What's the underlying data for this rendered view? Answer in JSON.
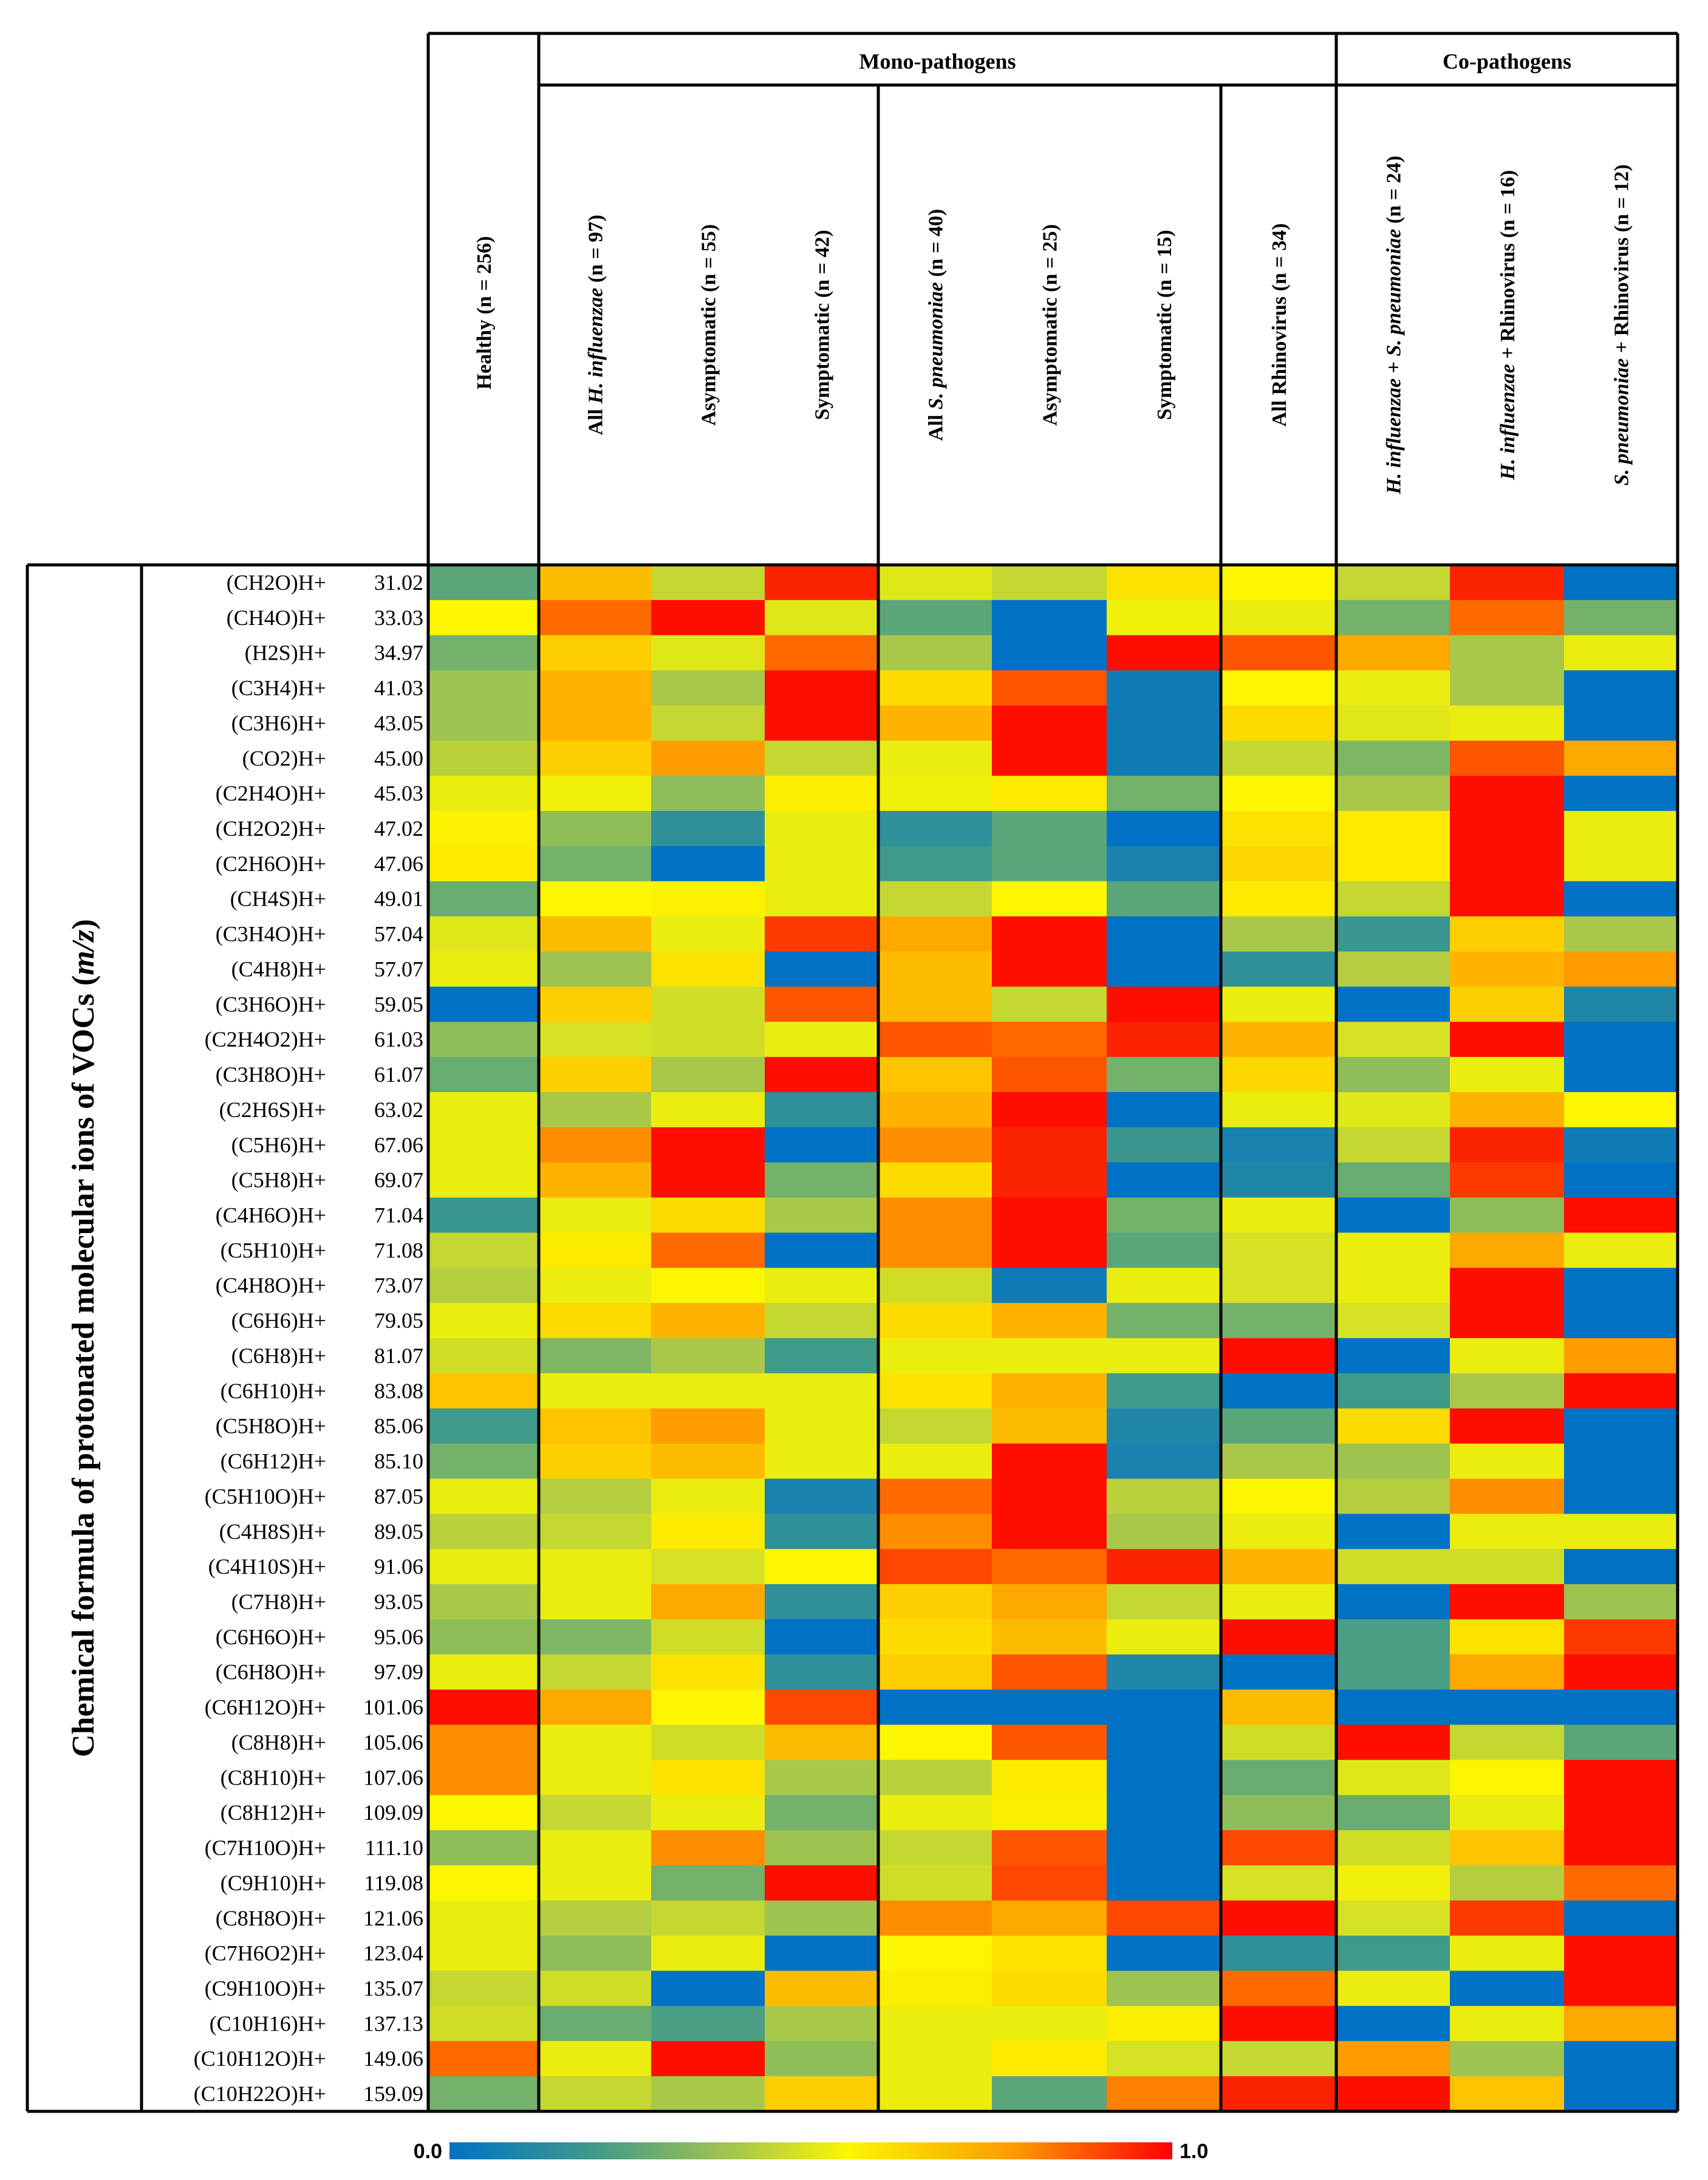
{
  "chart_data": {
    "type": "heatmap",
    "title": "",
    "ylabel_parts": [
      "Chemical formula of protonated molecular ions of VOCs (",
      "m/z",
      ")"
    ],
    "groups": [
      "Mono-pathogens",
      "Co-pathogens"
    ],
    "columns": [
      {
        "id": "healthy",
        "parts": [
          {
            "t": "Healthy (n = 256)",
            "i": false
          }
        ]
      },
      {
        "id": "all_hi",
        "parts": [
          {
            "t": "All ",
            "i": false
          },
          {
            "t": "H. influenzae",
            "i": true
          },
          {
            "t": " (n = 97)",
            "i": false
          }
        ]
      },
      {
        "id": "hi_asym",
        "parts": [
          {
            "t": "Asymptomatic (n = 55)",
            "i": false
          }
        ]
      },
      {
        "id": "hi_sym",
        "parts": [
          {
            "t": "Symptomatic (n = 42)",
            "i": false
          }
        ]
      },
      {
        "id": "all_sp",
        "parts": [
          {
            "t": "All ",
            "i": false
          },
          {
            "t": "S. pneumoniae",
            "i": true
          },
          {
            "t": " (n = 40)",
            "i": false
          }
        ]
      },
      {
        "id": "sp_asym",
        "parts": [
          {
            "t": "Asymptomatic (n = 25)",
            "i": false
          }
        ]
      },
      {
        "id": "sp_sym",
        "parts": [
          {
            "t": "Symptomatic (n = 15)",
            "i": false
          }
        ]
      },
      {
        "id": "all_rv",
        "parts": [
          {
            "t": "All Rhinovirus (n = 34)",
            "i": false
          }
        ]
      },
      {
        "id": "hi_sp",
        "parts": [
          {
            "t": "H. influenzae",
            "i": true
          },
          {
            "t": " + ",
            "i": false
          },
          {
            "t": "S. pneumoniae",
            "i": true
          },
          {
            "t": " (n = 24)",
            "i": false
          }
        ]
      },
      {
        "id": "hi_rv",
        "parts": [
          {
            "t": "H. influenzae",
            "i": true
          },
          {
            "t": " + Rhinovirus  (n = 16)",
            "i": false
          }
        ]
      },
      {
        "id": "sp_rv",
        "parts": [
          {
            "t": "S. pneumoniae",
            "i": true
          },
          {
            "t": " + Rhinovirus (n = 12)",
            "i": false
          }
        ]
      }
    ],
    "rows": [
      {
        "formula": "(CH2O)H+",
        "mz": "31.02"
      },
      {
        "formula": "(CH4O)H+",
        "mz": "33.03"
      },
      {
        "formula": "(H2S)H+",
        "mz": "34.97"
      },
      {
        "formula": "(C3H4)H+",
        "mz": "41.03"
      },
      {
        "formula": "(C3H6)H+",
        "mz": "43.05"
      },
      {
        "formula": "(CO2)H+",
        "mz": "45.00"
      },
      {
        "formula": "(C2H4O)H+",
        "mz": "45.03"
      },
      {
        "formula": "(CH2O2)H+",
        "mz": "47.02"
      },
      {
        "formula": "(C2H6O)H+",
        "mz": "47.06"
      },
      {
        "formula": "(CH4S)H+",
        "mz": "49.01"
      },
      {
        "formula": "(C3H4O)H+",
        "mz": "57.04"
      },
      {
        "formula": "(C4H8)H+",
        "mz": "57.07"
      },
      {
        "formula": "(C3H6O)H+",
        "mz": "59.05"
      },
      {
        "formula": "(C2H4O2)H+",
        "mz": "61.03"
      },
      {
        "formula": "(C3H8O)H+",
        "mz": "61.07"
      },
      {
        "formula": "(C2H6S)H+",
        "mz": "63.02"
      },
      {
        "formula": "(C5H6)H+",
        "mz": "67.06"
      },
      {
        "formula": "(C5H8)H+",
        "mz": "69.07"
      },
      {
        "formula": "(C4H6O)H+",
        "mz": "71.04"
      },
      {
        "formula": "(C5H10)H+",
        "mz": "71.08"
      },
      {
        "formula": "(C4H8O)H+",
        "mz": "73.07"
      },
      {
        "formula": "(C6H6)H+",
        "mz": "79.05"
      },
      {
        "formula": "(C6H8)H+",
        "mz": "81.07"
      },
      {
        "formula": "(C6H10)H+",
        "mz": "83.08"
      },
      {
        "formula": "(C5H8O)H+",
        "mz": "85.06"
      },
      {
        "formula": "(C6H12)H+",
        "mz": "85.10"
      },
      {
        "formula": "(C5H10O)H+",
        "mz": "87.05"
      },
      {
        "formula": "(C4H8S)H+",
        "mz": "89.05"
      },
      {
        "formula": "(C4H10S)H+",
        "mz": "91.06"
      },
      {
        "formula": "(C7H8)H+",
        "mz": "93.05"
      },
      {
        "formula": "(C6H6O)H+",
        "mz": "95.06"
      },
      {
        "formula": "(C6H8O)H+",
        "mz": "97.09"
      },
      {
        "formula": "(C6H12O)H+",
        "mz": "101.06"
      },
      {
        "formula": "(C8H8)H+",
        "mz": "105.06"
      },
      {
        "formula": "(C8H10)H+",
        "mz": "107.06"
      },
      {
        "formula": "(C8H12)H+",
        "mz": "109.09"
      },
      {
        "formula": "(C7H10O)H+",
        "mz": "111.10"
      },
      {
        "formula": "(C9H10)H+",
        "mz": "119.08"
      },
      {
        "formula": "(C8H8O)H+",
        "mz": "121.06"
      },
      {
        "formula": "(C7H6O2)H+",
        "mz": "123.04"
      },
      {
        "formula": "(C9H10O)H+",
        "mz": "135.07"
      },
      {
        "formula": "(C10H16)H+",
        "mz": "137.13"
      },
      {
        "formula": "(C10H12O)H+",
        "mz": "149.06"
      },
      {
        "formula": "(C10H22O)H+",
        "mz": "159.09"
      }
    ],
    "values": [
      [
        0.25,
        0.7,
        0.45,
        0.95,
        0.5,
        0.45,
        0.6,
        0.55,
        0.45,
        0.95,
        0.0
      ],
      [
        0.55,
        0.85,
        0.98,
        0.5,
        0.25,
        0.0,
        0.53,
        0.52,
        0.3,
        0.85,
        0.3
      ],
      [
        0.3,
        0.65,
        0.5,
        0.85,
        0.4,
        0.0,
        0.98,
        0.88,
        0.75,
        0.4,
        0.52
      ],
      [
        0.38,
        0.72,
        0.4,
        0.98,
        0.62,
        0.88,
        0.05,
        0.55,
        0.52,
        0.4,
        0.0
      ],
      [
        0.38,
        0.72,
        0.45,
        0.98,
        0.72,
        0.98,
        0.05,
        0.62,
        0.5,
        0.52,
        0.0
      ],
      [
        0.43,
        0.65,
        0.78,
        0.45,
        0.52,
        0.98,
        0.05,
        0.45,
        0.32,
        0.88,
        0.75
      ],
      [
        0.52,
        0.53,
        0.35,
        0.57,
        0.53,
        0.58,
        0.3,
        0.55,
        0.4,
        0.98,
        0.0
      ],
      [
        0.56,
        0.35,
        0.15,
        0.52,
        0.15,
        0.25,
        0.0,
        0.6,
        0.58,
        0.98,
        0.52
      ],
      [
        0.58,
        0.3,
        0.0,
        0.52,
        0.2,
        0.25,
        0.08,
        0.63,
        0.58,
        0.98,
        0.52
      ],
      [
        0.28,
        0.55,
        0.56,
        0.52,
        0.45,
        0.55,
        0.25,
        0.58,
        0.45,
        0.98,
        0.0
      ],
      [
        0.5,
        0.7,
        0.52,
        0.92,
        0.75,
        0.98,
        0.0,
        0.4,
        0.18,
        0.65,
        0.4
      ],
      [
        0.52,
        0.38,
        0.6,
        0.0,
        0.7,
        0.98,
        0.0,
        0.15,
        0.42,
        0.72,
        0.78
      ],
      [
        0.0,
        0.65,
        0.47,
        0.88,
        0.7,
        0.45,
        0.98,
        0.52,
        0.0,
        0.65,
        0.1
      ],
      [
        0.35,
        0.48,
        0.47,
        0.52,
        0.88,
        0.85,
        0.95,
        0.72,
        0.48,
        0.98,
        0.0
      ],
      [
        0.28,
        0.65,
        0.4,
        0.98,
        0.68,
        0.88,
        0.3,
        0.63,
        0.35,
        0.52,
        0.0
      ],
      [
        0.52,
        0.4,
        0.52,
        0.15,
        0.72,
        0.98,
        0.0,
        0.52,
        0.5,
        0.72,
        0.55
      ],
      [
        0.52,
        0.8,
        0.98,
        0.0,
        0.8,
        0.95,
        0.18,
        0.08,
        0.45,
        0.95,
        0.05
      ],
      [
        0.52,
        0.72,
        0.98,
        0.3,
        0.62,
        0.95,
        0.0,
        0.1,
        0.28,
        0.92,
        0.0
      ],
      [
        0.18,
        0.52,
        0.62,
        0.4,
        0.8,
        0.98,
        0.3,
        0.52,
        0.0,
        0.35,
        0.98
      ],
      [
        0.45,
        0.58,
        0.85,
        0.0,
        0.8,
        0.98,
        0.25,
        0.48,
        0.52,
        0.75,
        0.52
      ],
      [
        0.42,
        0.52,
        0.55,
        0.52,
        0.47,
        0.05,
        0.52,
        0.48,
        0.52,
        0.98,
        0.0
      ],
      [
        0.52,
        0.62,
        0.72,
        0.45,
        0.62,
        0.72,
        0.3,
        0.3,
        0.48,
        0.98,
        0.0
      ],
      [
        0.47,
        0.32,
        0.4,
        0.2,
        0.52,
        0.52,
        0.52,
        0.98,
        0.0,
        0.52,
        0.78
      ],
      [
        0.68,
        0.52,
        0.52,
        0.52,
        0.6,
        0.72,
        0.2,
        0.0,
        0.2,
        0.4,
        0.98
      ],
      [
        0.2,
        0.68,
        0.78,
        0.52,
        0.45,
        0.7,
        0.1,
        0.25,
        0.62,
        0.98,
        0.0
      ],
      [
        0.3,
        0.65,
        0.7,
        0.52,
        0.52,
        0.98,
        0.08,
        0.4,
        0.38,
        0.52,
        0.0
      ],
      [
        0.52,
        0.42,
        0.52,
        0.08,
        0.85,
        0.98,
        0.43,
        0.55,
        0.42,
        0.8,
        0.0
      ],
      [
        0.43,
        0.45,
        0.58,
        0.15,
        0.8,
        0.98,
        0.4,
        0.52,
        0.0,
        0.52,
        0.52
      ],
      [
        0.52,
        0.52,
        0.48,
        0.55,
        0.9,
        0.85,
        0.95,
        0.72,
        0.47,
        0.47,
        0.0
      ],
      [
        0.4,
        0.52,
        0.75,
        0.15,
        0.65,
        0.75,
        0.45,
        0.52,
        0.0,
        0.98,
        0.38
      ],
      [
        0.35,
        0.32,
        0.47,
        0.0,
        0.62,
        0.7,
        0.52,
        0.98,
        0.22,
        0.6,
        0.92
      ],
      [
        0.52,
        0.45,
        0.6,
        0.15,
        0.65,
        0.88,
        0.1,
        0.0,
        0.22,
        0.75,
        0.98
      ],
      [
        0.98,
        0.75,
        0.55,
        0.9,
        0.0,
        0.0,
        0.0,
        0.7,
        0.0,
        0.0,
        0.0
      ],
      [
        0.8,
        0.52,
        0.47,
        0.7,
        0.55,
        0.88,
        0.0,
        0.47,
        0.98,
        0.45,
        0.25
      ],
      [
        0.8,
        0.52,
        0.6,
        0.4,
        0.43,
        0.58,
        0.0,
        0.28,
        0.5,
        0.55,
        0.98
      ],
      [
        0.55,
        0.45,
        0.52,
        0.3,
        0.52,
        0.57,
        0.0,
        0.35,
        0.28,
        0.52,
        0.98
      ],
      [
        0.35,
        0.52,
        0.8,
        0.38,
        0.45,
        0.88,
        0.0,
        0.9,
        0.47,
        0.68,
        0.98
      ],
      [
        0.55,
        0.52,
        0.3,
        0.98,
        0.47,
        0.9,
        0.0,
        0.48,
        0.53,
        0.42,
        0.85
      ],
      [
        0.52,
        0.42,
        0.45,
        0.38,
        0.8,
        0.75,
        0.9,
        0.98,
        0.48,
        0.92,
        0.0
      ],
      [
        0.52,
        0.35,
        0.52,
        0.0,
        0.55,
        0.6,
        0.0,
        0.15,
        0.2,
        0.52,
        0.98
      ],
      [
        0.45,
        0.47,
        0.0,
        0.7,
        0.57,
        0.62,
        0.38,
        0.85,
        0.52,
        0.0,
        0.98
      ],
      [
        0.47,
        0.28,
        0.22,
        0.4,
        0.52,
        0.52,
        0.57,
        0.98,
        0.0,
        0.52,
        0.75
      ],
      [
        0.85,
        0.52,
        0.98,
        0.35,
        0.52,
        0.58,
        0.48,
        0.45,
        0.78,
        0.38,
        0.0
      ],
      [
        0.3,
        0.45,
        0.4,
        0.65,
        0.52,
        0.25,
        0.82,
        0.95,
        0.98,
        0.68,
        0.0
      ]
    ],
    "colorbar": {
      "min_label": "0.0",
      "max_label": "1.0",
      "range": [
        0,
        1
      ],
      "colormap": [
        "#0072c6",
        "#3f9a8a",
        "#a9c84a",
        "#fcf600",
        "#fe9c00",
        "#fe0000"
      ]
    }
  }
}
